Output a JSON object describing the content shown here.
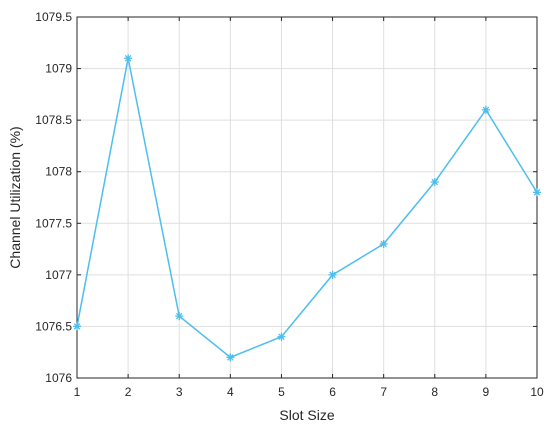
{
  "chart_data": {
    "type": "line",
    "title": "",
    "xlabel": "Slot Size",
    "ylabel": "Channel Utilization (%)",
    "x": [
      1,
      2,
      3,
      4,
      5,
      6,
      7,
      8,
      9,
      10
    ],
    "xlim": [
      1,
      10
    ],
    "ylim": [
      1076,
      1079.5
    ],
    "x_ticks": [
      "1",
      "2",
      "3",
      "4",
      "5",
      "6",
      "7",
      "8",
      "9",
      "10"
    ],
    "y_ticks": [
      "1076",
      "1076.5",
      "1077",
      "1077.5",
      "1078",
      "1078.5",
      "1079",
      "1079.5"
    ],
    "grid": true,
    "series": [
      {
        "marker": "asterisk",
        "color": "#4dbeee",
        "values": [
          1076.5,
          1079.1,
          1076.6,
          1076.2,
          1076.4,
          1077.0,
          1077.3,
          1077.9,
          1078.6,
          1077.8
        ]
      }
    ]
  }
}
